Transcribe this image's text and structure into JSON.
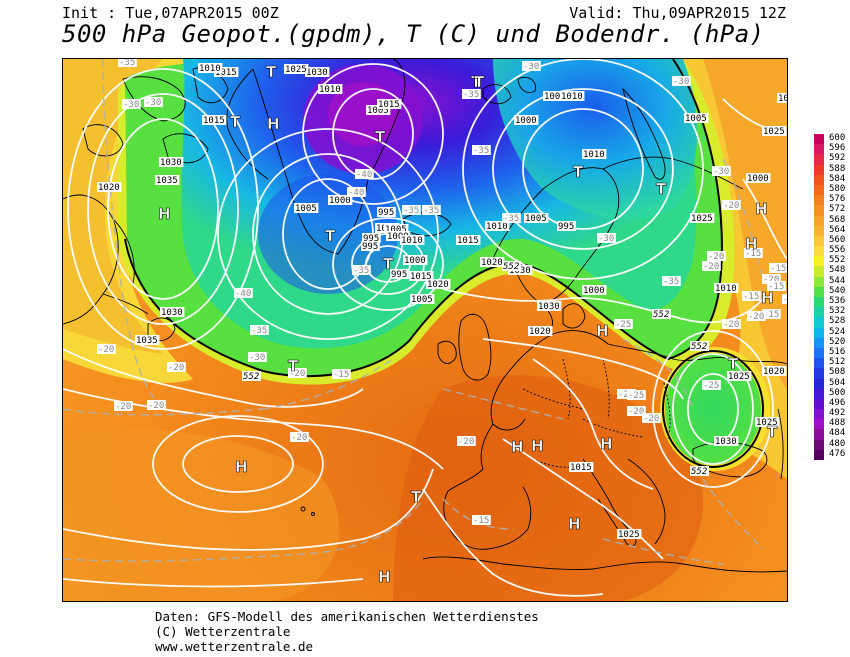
{
  "header": {
    "init": "Init : Tue,07APR2015 00Z",
    "valid": "Valid: Thu,09APR2015 12Z",
    "title": "500 hPa Geopot.(gpdm), T (C) und Bodendr. (hPa)"
  },
  "footer": {
    "line1": "Daten: GFS-Modell des amerikanischen Wetterdienstes",
    "line2": "(C) Wetterzentrale",
    "line3": "www.wetterzentrale.de"
  },
  "legend": {
    "levels": [
      "600",
      "596",
      "592",
      "588",
      "584",
      "580",
      "576",
      "572",
      "568",
      "564",
      "560",
      "556",
      "552",
      "548",
      "544",
      "540",
      "536",
      "532",
      "528",
      "524",
      "520",
      "516",
      "512",
      "508",
      "504",
      "500",
      "496",
      "492",
      "488",
      "484",
      "480",
      "476"
    ],
    "colors": [
      "#c8005a",
      "#d81860",
      "#e6284a",
      "#ee3a28",
      "#f0521a",
      "#f26a18",
      "#f2801c",
      "#f49224",
      "#f6a22a",
      "#f8b430",
      "#fac838",
      "#fcdc3c",
      "#f8f028",
      "#c8ec2c",
      "#8ce838",
      "#50e048",
      "#28d874",
      "#1cd0a8",
      "#14c8d4",
      "#10b4ec",
      "#1494f4",
      "#1a74f4",
      "#1e54ec",
      "#2238e0",
      "#2a24d8",
      "#4418d4",
      "#6410d4",
      "#8410d0",
      "#a010c8",
      "#8c0c9c",
      "#6c0878",
      "#540460"
    ]
  },
  "map": {
    "pressure_labels": [
      "1015",
      "1010",
      "1015",
      "1030",
      "1025",
      "1010",
      "1005",
      "995",
      "1000",
      "1005",
      "1015",
      "995",
      "1010",
      "1005",
      "995",
      "1000",
      "1020",
      "1015",
      "1035",
      "1030",
      "1020",
      "1030",
      "1035",
      "1010",
      "1005",
      "1000",
      "995",
      "995",
      "1010",
      "1000",
      "1015",
      "1020",
      "1005",
      "1000",
      "1005",
      "1010",
      "1025",
      "1030",
      "1010",
      "1005",
      "1000",
      "1010",
      "1025",
      "1030",
      "1030",
      "1020",
      "1025",
      "1020",
      "1025",
      "1030",
      "1025",
      "1015"
    ],
    "temp_labels": [
      "-35",
      "-30",
      "-30",
      "-35",
      "-30",
      "-40",
      "-40",
      "-35",
      "-35",
      "-35",
      "-30",
      "-35",
      "-30",
      "-35",
      "-30",
      "-20",
      "-20",
      "-20",
      "-15",
      "-35",
      "-40",
      "-35",
      "-30",
      "-20",
      "-20",
      "-20",
      "-25",
      "-20",
      "-25",
      "-20",
      "-20",
      "-20",
      "-20",
      "-20",
      "-25",
      "-20",
      "-15",
      "-15",
      "-15",
      "-15",
      "-15",
      "-20",
      "-20",
      "-15",
      "-20",
      "-25"
    ],
    "contour_labels": [
      "552",
      "552",
      "552",
      "552",
      "552"
    ],
    "centers": [
      {
        "t": "H"
      },
      {
        "t": "H"
      },
      {
        "t": "T"
      },
      {
        "t": "T"
      },
      {
        "t": "H"
      },
      {
        "t": "T"
      },
      {
        "t": "T"
      },
      {
        "t": "T"
      },
      {
        "t": "T"
      },
      {
        "t": "T"
      },
      {
        "t": "H"
      },
      {
        "t": "T"
      },
      {
        "t": "H"
      },
      {
        "t": "H"
      },
      {
        "t": "H"
      },
      {
        "t": "H"
      },
      {
        "t": "T"
      },
      {
        "t": "T"
      },
      {
        "t": "H"
      },
      {
        "t": "H"
      },
      {
        "t": "H"
      },
      {
        "t": "T"
      },
      {
        "t": "H"
      },
      {
        "t": "T"
      },
      {
        "t": "T"
      }
    ]
  }
}
